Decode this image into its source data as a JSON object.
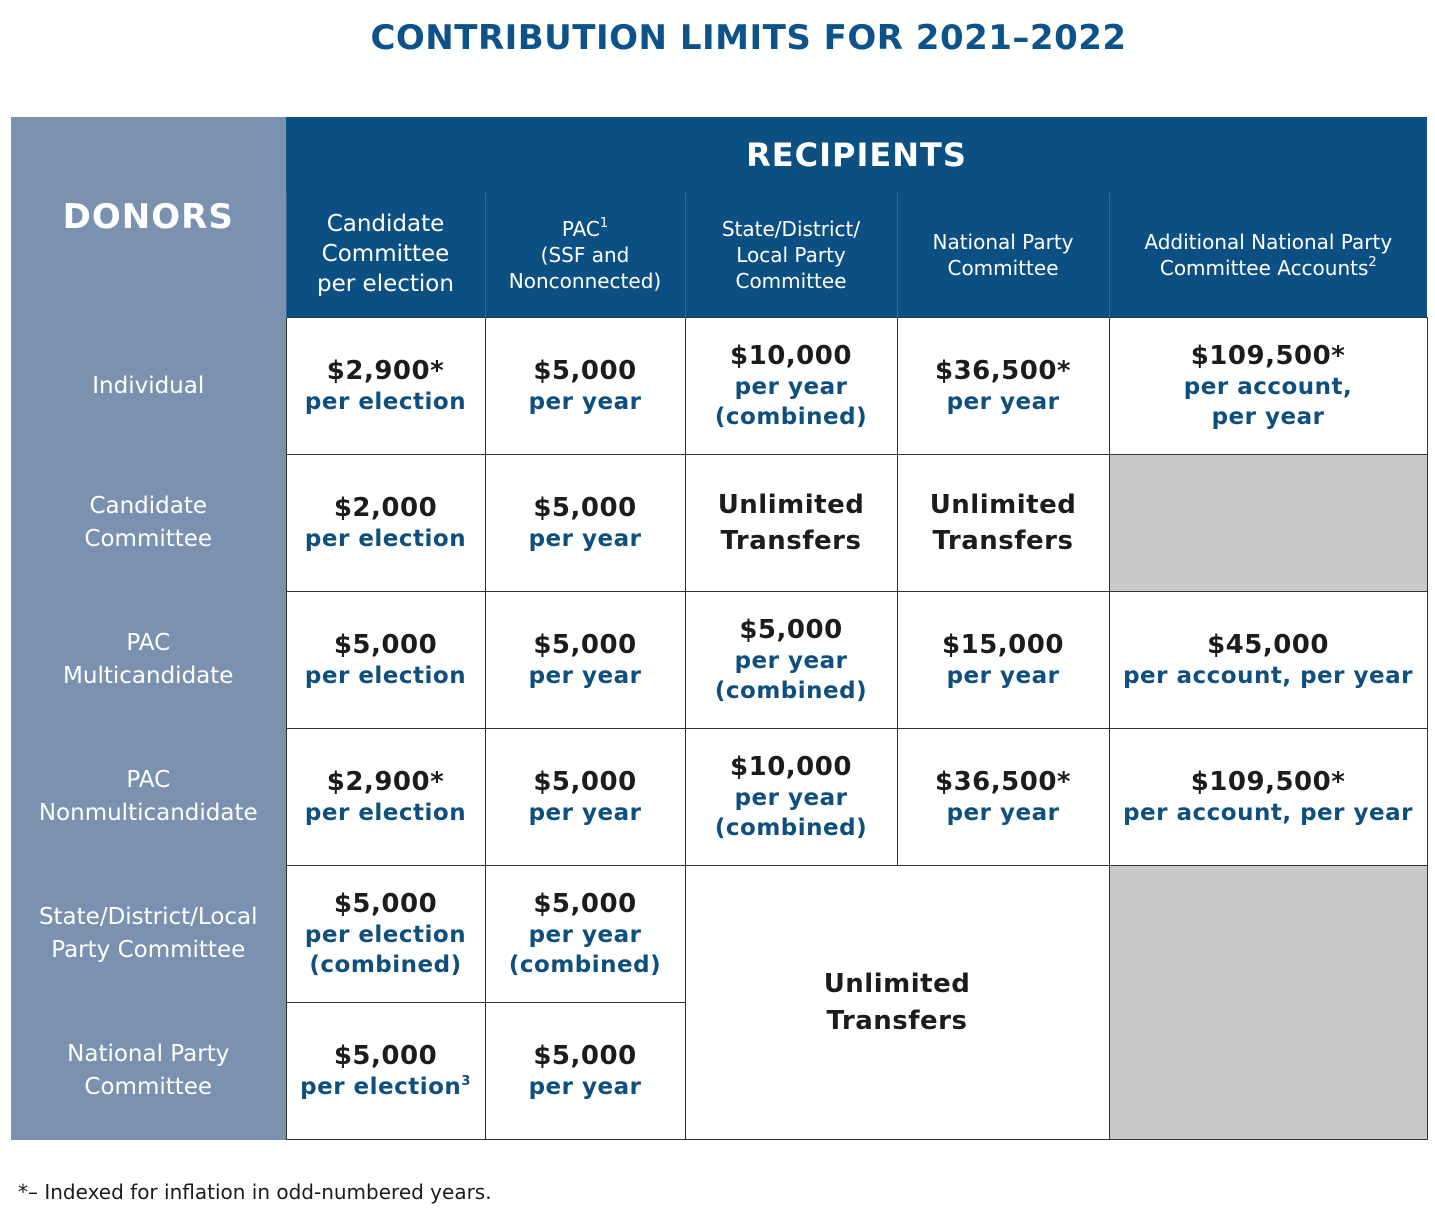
{
  "title": "CONTRIBUTION LIMITS FOR 2021–2022",
  "header": {
    "donors": "DONORS",
    "recipients": "RECIPIENTS",
    "columns": [
      {
        "lines": [
          "Candidate",
          "Committee",
          "per election"
        ],
        "sup": ""
      },
      {
        "lines": [
          "PAC",
          "(SSF and",
          "Nonconnected)"
        ],
        "sup": "1"
      },
      {
        "lines": [
          "State/District/",
          "Local Party",
          "Committee"
        ],
        "sup": ""
      },
      {
        "lines": [
          "National Party",
          "Committee"
        ],
        "sup": ""
      },
      {
        "lines": [
          "Additional National Party",
          "Committee Accounts"
        ],
        "sup": "2"
      }
    ]
  },
  "rows": [
    {
      "donor": [
        "Individual"
      ],
      "cells": [
        {
          "amount": "$2,900*",
          "unit": [
            "per election"
          ]
        },
        {
          "amount": "$5,000",
          "unit": [
            "per year"
          ]
        },
        {
          "amount": "$10,000",
          "unit": [
            "per year",
            "(combined)"
          ]
        },
        {
          "amount": "$36,500*",
          "unit": [
            "per year"
          ]
        },
        {
          "amount": "$109,500*",
          "unit": [
            "per account,",
            "per year"
          ]
        }
      ]
    },
    {
      "donor": [
        "Candidate",
        "Committee"
      ],
      "cells": [
        {
          "amount": "$2,000",
          "unit": [
            "per election"
          ]
        },
        {
          "amount": "$5,000",
          "unit": [
            "per year"
          ]
        },
        {
          "text": [
            "Unlimited",
            "Transfers"
          ]
        },
        {
          "text": [
            "Unlimited",
            "Transfers"
          ]
        }
      ]
    },
    {
      "donor": [
        "PAC",
        "Multicandidate"
      ],
      "cells": [
        {
          "amount": "$5,000",
          "unit": [
            "per election"
          ]
        },
        {
          "amount": "$5,000",
          "unit": [
            "per year"
          ]
        },
        {
          "amount": "$5,000",
          "unit": [
            "per year",
            "(combined)"
          ]
        },
        {
          "amount": "$15,000",
          "unit": [
            "per year"
          ]
        },
        {
          "amount": "$45,000",
          "unit": [
            "per account, per year"
          ]
        }
      ]
    },
    {
      "donor": [
        "PAC",
        "Nonmulticandidate"
      ],
      "cells": [
        {
          "amount": "$2,900*",
          "unit": [
            "per election"
          ]
        },
        {
          "amount": "$5,000",
          "unit": [
            "per year"
          ]
        },
        {
          "amount": "$10,000",
          "unit": [
            "per year",
            "(combined)"
          ]
        },
        {
          "amount": "$36,500*",
          "unit": [
            "per year"
          ]
        },
        {
          "amount": "$109,500*",
          "unit": [
            "per account, per year"
          ]
        }
      ]
    },
    {
      "donor": [
        "State/District/Local",
        "Party Committee"
      ],
      "cells": [
        {
          "amount": "$5,000",
          "unit": [
            "per election",
            "(combined)"
          ]
        },
        {
          "amount": "$5,000",
          "unit": [
            "per year",
            "(combined)"
          ]
        }
      ]
    },
    {
      "donor": [
        "National Party",
        "Committee"
      ],
      "cells": [
        {
          "amount": "$5,000",
          "unit": [
            "per election"
          ],
          "sup": "3"
        },
        {
          "amount": "$5,000",
          "unit": [
            "per year"
          ]
        }
      ]
    }
  ],
  "merged_unlimited": [
    "Unlimited",
    "Transfers"
  ],
  "footnote": "*– Indexed for inflation in odd-numbered years."
}
